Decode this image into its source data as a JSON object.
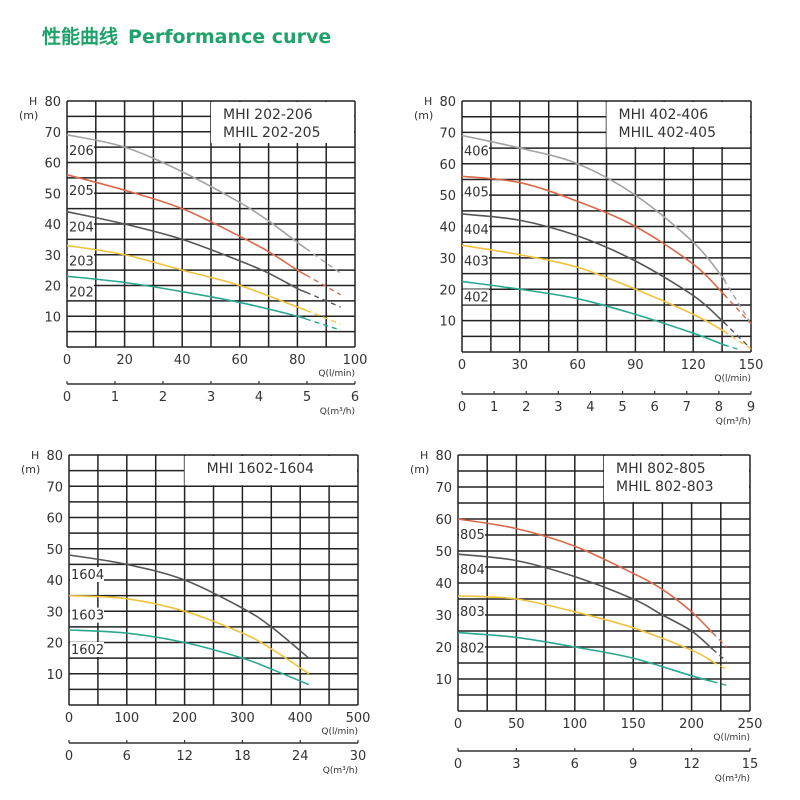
{
  "page": {
    "title_cn": "性能曲线",
    "title_en": "Performance curve",
    "title_color": "#1fa36a"
  },
  "chart_data": [
    {
      "type": "line",
      "legend_lines": [
        "MHI   202-206",
        "MHIL 202-205"
      ],
      "ylabel": "H",
      "yunit": "(m)",
      "xlabel": "Q(l/min)",
      "x2label": "Q(m³/h)",
      "xlim": [
        0,
        100
      ],
      "ylim": [
        0,
        80
      ],
      "x_ticks": [
        "0",
        "20",
        "40",
        "60",
        "80",
        "100"
      ],
      "x2_ticks": [
        "0",
        "1",
        "2",
        "3",
        "4",
        "5",
        "6"
      ],
      "y_ticks": [
        "10",
        "20",
        "30",
        "40",
        "50",
        "60",
        "70",
        "80"
      ],
      "grid": true,
      "series": [
        {
          "name": "206",
          "color": "#a3a3a3",
          "dashed_from": 83,
          "points": [
            [
              0,
              69
            ],
            [
              20,
              65
            ],
            [
              40,
              57
            ],
            [
              60,
              47
            ],
            [
              70,
              41
            ],
            [
              80,
              34
            ],
            [
              95,
              24
            ]
          ]
        },
        {
          "name": "205",
          "color": "#d9694a",
          "dashed_from": 83,
          "points": [
            [
              0,
              56
            ],
            [
              20,
              51
            ],
            [
              40,
              45
            ],
            [
              60,
              36
            ],
            [
              70,
              31
            ],
            [
              80,
              25
            ],
            [
              95,
              17
            ]
          ]
        },
        {
          "name": "204",
          "color": "#555555",
          "dashed_from": 83,
          "points": [
            [
              0,
              44
            ],
            [
              20,
              40
            ],
            [
              40,
              35
            ],
            [
              60,
              28
            ],
            [
              70,
              24
            ],
            [
              80,
              19
            ],
            [
              95,
              13
            ]
          ]
        },
        {
          "name": "203",
          "color": "#f0c23c",
          "dashed_from": 83,
          "points": [
            [
              0,
              33
            ],
            [
              20,
              30
            ],
            [
              40,
              25
            ],
            [
              60,
              20
            ],
            [
              80,
              13
            ],
            [
              95,
              7.5
            ]
          ]
        },
        {
          "name": "202",
          "color": "#2aa88f",
          "dashed_from": 83,
          "points": [
            [
              0,
              23
            ],
            [
              20,
              21
            ],
            [
              40,
              18
            ],
            [
              60,
              14.5
            ],
            [
              80,
              10
            ],
            [
              95,
              5.5
            ]
          ]
        }
      ]
    },
    {
      "type": "line",
      "legend_lines": [
        "MHI   402-406",
        "MHIL 402-405"
      ],
      "ylabel": "H",
      "yunit": "(m)",
      "xlabel": "Q(l/min)",
      "x2label": "Q(m³/h)",
      "xlim": [
        0,
        150
      ],
      "ylim": [
        0,
        80
      ],
      "x_ticks": [
        "0",
        "30",
        "60",
        "90",
        "120",
        "150"
      ],
      "x2_ticks": [
        "0",
        "1",
        "2",
        "3",
        "4",
        "5",
        "6",
        "7",
        "8",
        "9"
      ],
      "y_ticks": [
        "10",
        "20",
        "30",
        "40",
        "50",
        "60",
        "70",
        "80"
      ],
      "grid": true,
      "series": [
        {
          "name": "406",
          "color": "#a3a3a3",
          "dashed_from": 136,
          "points": [
            [
              0,
              69
            ],
            [
              30,
              65
            ],
            [
              60,
              60
            ],
            [
              90,
              50
            ],
            [
              120,
              35
            ],
            [
              135,
              24
            ],
            [
              150,
              9
            ]
          ]
        },
        {
          "name": "405",
          "color": "#d9694a",
          "dashed_from": 136,
          "points": [
            [
              0,
              56
            ],
            [
              30,
              54
            ],
            [
              60,
              48
            ],
            [
              90,
              40
            ],
            [
              120,
              28
            ],
            [
              135,
              19
            ],
            [
              150,
              9
            ]
          ]
        },
        {
          "name": "404",
          "color": "#555555",
          "dashed_from": 136,
          "points": [
            [
              0,
              44
            ],
            [
              30,
              42
            ],
            [
              60,
              37
            ],
            [
              90,
              29
            ],
            [
              120,
              18
            ],
            [
              135,
              10
            ],
            [
              150,
              1
            ]
          ]
        },
        {
          "name": "403",
          "color": "#f0c23c",
          "dashed_from": 136,
          "points": [
            [
              0,
              34
            ],
            [
              30,
              31
            ],
            [
              60,
              27
            ],
            [
              90,
              20
            ],
            [
              120,
              12
            ],
            [
              135,
              7
            ],
            [
              150,
              1
            ]
          ]
        },
        {
          "name": "402",
          "color": "#2aa88f",
          "dashed_from": 136,
          "points": [
            [
              0,
              22.5
            ],
            [
              30,
              20
            ],
            [
              60,
              17
            ],
            [
              90,
              12
            ],
            [
              120,
              6
            ],
            [
              135,
              2.5
            ],
            [
              145,
              0.5
            ]
          ]
        }
      ]
    },
    {
      "type": "line",
      "legend_lines": [
        "MHI 1602-1604"
      ],
      "ylabel": "H",
      "yunit": "(m)",
      "xlabel": "Q(l/min)",
      "x2label": "Q(m³/h)",
      "xlim": [
        0,
        500
      ],
      "ylim": [
        0,
        80
      ],
      "x_ticks": [
        "0",
        "100",
        "200",
        "300",
        "400",
        "500"
      ],
      "x2_ticks": [
        "0",
        "6",
        "12",
        "18",
        "24",
        "30"
      ],
      "y_ticks": [
        "10",
        "20",
        "30",
        "40",
        "50",
        "60",
        "70",
        "80"
      ],
      "grid": true,
      "series": [
        {
          "name": "1604",
          "color": "#555555",
          "points": [
            [
              0,
              48
            ],
            [
              100,
              45
            ],
            [
              200,
              40
            ],
            [
              300,
              31
            ],
            [
              350,
              25
            ],
            [
              415,
              15
            ]
          ]
        },
        {
          "name": "1603",
          "color": "#f0c23c",
          "points": [
            [
              0,
              35
            ],
            [
              100,
              34
            ],
            [
              200,
              30
            ],
            [
              300,
              23
            ],
            [
              350,
              18
            ],
            [
              415,
              10
            ]
          ]
        },
        {
          "name": "1602",
          "color": "#2aa88f",
          "points": [
            [
              0,
              24
            ],
            [
              100,
              23
            ],
            [
              200,
              20
            ],
            [
              300,
              15
            ],
            [
              350,
              11.5
            ],
            [
              415,
              6.5
            ]
          ]
        }
      ]
    },
    {
      "type": "line",
      "legend_lines": [
        "MHI   802-805",
        "MHIL 802-803"
      ],
      "ylabel": "H",
      "yunit": "(m)",
      "xlabel": "Q(l/min)",
      "x2label": "Q(m³/h)",
      "xlim": [
        0,
        250
      ],
      "ylim": [
        0,
        80
      ],
      "x_ticks": [
        "0",
        "50",
        "100",
        "150",
        "200",
        "250"
      ],
      "x2_ticks": [
        "0",
        "3",
        "6",
        "9",
        "12",
        "15"
      ],
      "y_ticks": [
        "10",
        "20",
        "30",
        "40",
        "50",
        "60",
        "70",
        "80"
      ],
      "grid": true,
      "series": [
        {
          "name": "805",
          "color": "#d9694a",
          "dashed_from": 218,
          "points": [
            [
              0,
              60
            ],
            [
              50,
              57
            ],
            [
              100,
              51.5
            ],
            [
              150,
              43
            ],
            [
              175,
              38
            ],
            [
              200,
              31
            ],
            [
              230,
              20
            ]
          ]
        },
        {
          "name": "804",
          "color": "#555555",
          "dashed_from": 218,
          "points": [
            [
              0,
              49
            ],
            [
              50,
              47
            ],
            [
              100,
              42
            ],
            [
              150,
              35
            ],
            [
              175,
              30
            ],
            [
              200,
              25
            ],
            [
              230,
              15.5
            ]
          ]
        },
        {
          "name": "803",
          "color": "#f0c23c",
          "dashed_from": 218,
          "points": [
            [
              0,
              36
            ],
            [
              50,
              35
            ],
            [
              100,
              31
            ],
            [
              150,
              26
            ],
            [
              200,
              19
            ],
            [
              230,
              13
            ]
          ]
        },
        {
          "name": "802",
          "color": "#2aa88f",
          "dashed_from": 218,
          "points": [
            [
              0,
              24.5
            ],
            [
              50,
              23
            ],
            [
              100,
              20
            ],
            [
              150,
              16.5
            ],
            [
              200,
              11
            ],
            [
              230,
              8
            ]
          ]
        }
      ]
    }
  ]
}
